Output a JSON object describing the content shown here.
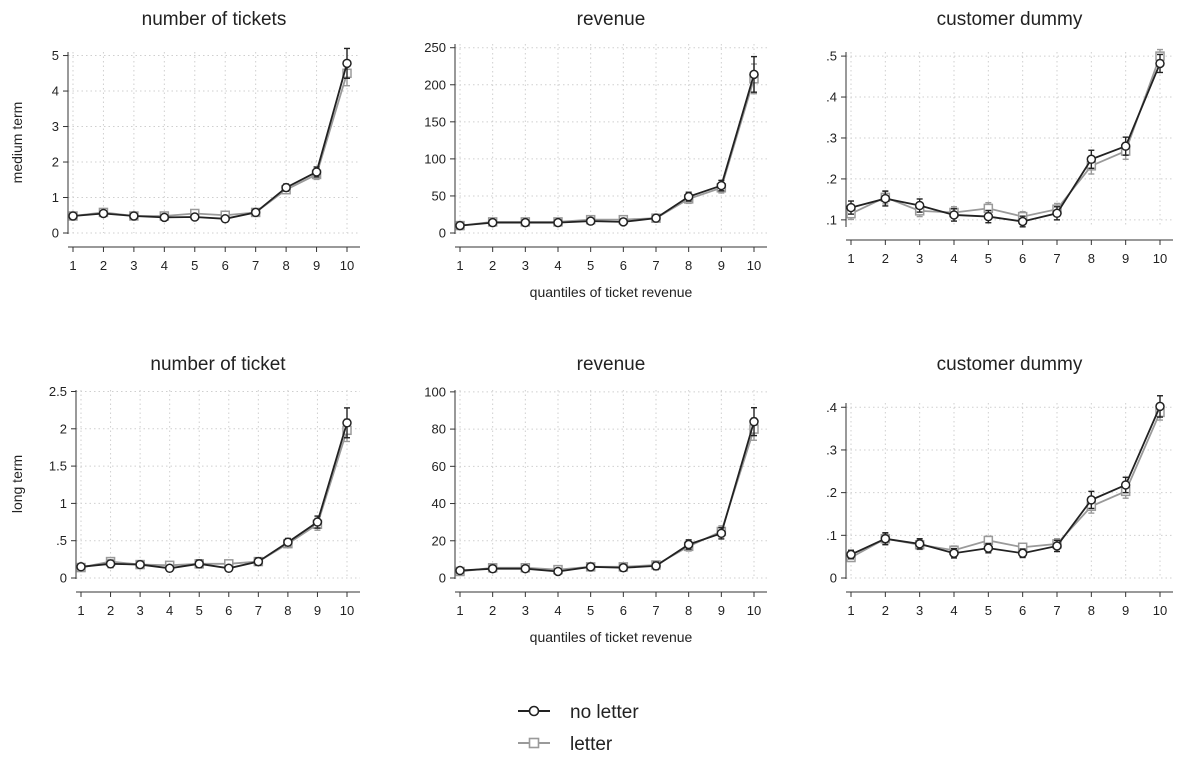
{
  "chart_data": [
    {
      "type": "line",
      "title": "number of tickets",
      "ylabel": "medium term",
      "xlabel": "",
      "x": [
        1,
        2,
        3,
        4,
        5,
        6,
        7,
        8,
        9,
        10
      ],
      "ylim": [
        0,
        5.1
      ],
      "yticks": [
        0,
        1,
        2,
        3,
        4,
        5
      ],
      "yticklabels": [
        "0",
        "1",
        "2",
        "3",
        "4",
        "5"
      ],
      "grid": true,
      "series": [
        {
          "name": "no letter",
          "values": [
            0.48,
            0.55,
            0.48,
            0.44,
            0.45,
            0.4,
            0.58,
            1.28,
            1.72,
            4.78
          ],
          "errors": [
            0.05,
            0.07,
            0.06,
            0.06,
            0.07,
            0.06,
            0.08,
            0.1,
            0.14,
            0.42
          ]
        },
        {
          "name": "letter",
          "values": [
            0.48,
            0.58,
            0.48,
            0.48,
            0.55,
            0.5,
            0.58,
            1.22,
            1.65,
            4.5
          ],
          "errors": [
            0.05,
            0.07,
            0.06,
            0.06,
            0.07,
            0.06,
            0.08,
            0.1,
            0.14,
            0.35
          ]
        }
      ]
    },
    {
      "type": "line",
      "title": "revenue",
      "ylabel": "",
      "xlabel": "quantiles of ticket revenue",
      "x": [
        1,
        2,
        3,
        4,
        5,
        6,
        7,
        8,
        9,
        10
      ],
      "ylim": [
        0,
        255
      ],
      "yticks": [
        0,
        50,
        100,
        150,
        200,
        250
      ],
      "yticklabels": [
        "0",
        "50",
        "100",
        "150",
        "200",
        "250"
      ],
      "grid": true,
      "series": [
        {
          "name": "no letter",
          "values": [
            10,
            14,
            14,
            14,
            16,
            15,
            20,
            49,
            64,
            214
          ],
          "errors": [
            2,
            3,
            3,
            3,
            4,
            4,
            4,
            6,
            7,
            24
          ]
        },
        {
          "name": "letter",
          "values": [
            10,
            15,
            15,
            15,
            18,
            18,
            20,
            46,
            61,
            208
          ],
          "errors": [
            2,
            3,
            3,
            3,
            4,
            4,
            4,
            6,
            7,
            20
          ]
        }
      ]
    },
    {
      "type": "line",
      "title": "customer dummy",
      "ylabel": "",
      "xlabel": "",
      "x": [
        1,
        2,
        3,
        4,
        5,
        6,
        7,
        8,
        9,
        10
      ],
      "ylim": [
        0.085,
        0.51
      ],
      "yticks": [
        0.1,
        0.2,
        0.3,
        0.4,
        0.5
      ],
      "yticklabels": [
        ".1",
        ".2",
        ".3",
        ".4",
        ".5"
      ],
      "grid": true,
      "series": [
        {
          "name": "no letter",
          "values": [
            0.13,
            0.152,
            0.135,
            0.112,
            0.108,
            0.096,
            0.116,
            0.248,
            0.28,
            0.482
          ],
          "errors": [
            0.016,
            0.018,
            0.016,
            0.015,
            0.015,
            0.013,
            0.016,
            0.022,
            0.022,
            0.022
          ]
        },
        {
          "name": "letter",
          "values": [
            0.115,
            0.155,
            0.122,
            0.118,
            0.128,
            0.108,
            0.126,
            0.232,
            0.268,
            0.5
          ],
          "errors": [
            0.014,
            0.016,
            0.014,
            0.014,
            0.014,
            0.012,
            0.014,
            0.02,
            0.02,
            0.016
          ]
        }
      ]
    },
    {
      "type": "line",
      "title": "number of ticket",
      "ylabel": "long term",
      "xlabel": "",
      "x": [
        1,
        2,
        3,
        4,
        5,
        6,
        7,
        8,
        9,
        10
      ],
      "ylim": [
        0,
        2.52
      ],
      "yticks": [
        0,
        0.5,
        1,
        1.5,
        2,
        2.5
      ],
      "yticklabels": [
        "0",
        ".5",
        "1",
        "1.5",
        "2",
        "2.5"
      ],
      "grid": true,
      "series": [
        {
          "name": "no letter",
          "values": [
            0.15,
            0.19,
            0.18,
            0.13,
            0.19,
            0.13,
            0.22,
            0.48,
            0.75,
            2.08
          ],
          "errors": [
            0.04,
            0.05,
            0.04,
            0.04,
            0.05,
            0.04,
            0.05,
            0.05,
            0.08,
            0.2
          ]
        },
        {
          "name": "letter",
          "values": [
            0.14,
            0.22,
            0.18,
            0.17,
            0.19,
            0.19,
            0.22,
            0.46,
            0.72,
            1.98
          ],
          "errors": [
            0.04,
            0.05,
            0.04,
            0.04,
            0.05,
            0.04,
            0.05,
            0.05,
            0.08,
            0.15
          ]
        }
      ]
    },
    {
      "type": "line",
      "title": "revenue",
      "ylabel": "",
      "xlabel": "quantiles of ticket revenue",
      "x": [
        1,
        2,
        3,
        4,
        5,
        6,
        7,
        8,
        9,
        10
      ],
      "ylim": [
        0,
        101
      ],
      "yticks": [
        0,
        20,
        40,
        60,
        80,
        100
      ],
      "yticklabels": [
        "0",
        "20",
        "40",
        "60",
        "80",
        "100"
      ],
      "grid": true,
      "series": [
        {
          "name": "no letter",
          "values": [
            4,
            5,
            5,
            3.5,
            6,
            5.5,
            6.5,
            18,
            24,
            84
          ],
          "errors": [
            1.5,
            1.8,
            1.6,
            1.4,
            1.6,
            1.8,
            2.0,
            2.5,
            3.0,
            7.5
          ]
        },
        {
          "name": "letter",
          "values": [
            3.5,
            5.5,
            5.5,
            4.5,
            6,
            6,
            7,
            17,
            25,
            80
          ],
          "errors": [
            1.5,
            1.8,
            1.6,
            1.4,
            1.6,
            1.8,
            2.0,
            2.5,
            3.0,
            6.0
          ]
        }
      ]
    },
    {
      "type": "line",
      "title": "customer dummy",
      "ylabel": "",
      "xlabel": "",
      "x": [
        1,
        2,
        3,
        4,
        5,
        6,
        7,
        8,
        9,
        10
      ],
      "ylim": [
        0,
        0.41
      ],
      "yticks": [
        0,
        0.1,
        0.2,
        0.3,
        0.4
      ],
      "yticklabels": [
        "0",
        ".1",
        ".2",
        ".3",
        ".4"
      ],
      "grid": true,
      "series": [
        {
          "name": "no letter",
          "values": [
            0.055,
            0.092,
            0.08,
            0.058,
            0.07,
            0.058,
            0.075,
            0.183,
            0.218,
            0.402
          ],
          "errors": [
            0.01,
            0.014,
            0.012,
            0.011,
            0.011,
            0.01,
            0.013,
            0.02,
            0.018,
            0.025
          ]
        },
        {
          "name": "letter",
          "values": [
            0.048,
            0.092,
            0.078,
            0.065,
            0.088,
            0.072,
            0.08,
            0.168,
            0.203,
            0.388
          ],
          "errors": [
            0.009,
            0.012,
            0.011,
            0.01,
            0.01,
            0.009,
            0.012,
            0.016,
            0.016,
            0.018
          ]
        }
      ]
    }
  ],
  "legend": {
    "placement": "bottom-center",
    "items": [
      {
        "label": "no letter",
        "color": "#222222",
        "marker": "circle"
      },
      {
        "label": "letter",
        "color": "#9a9a9a",
        "marker": "square"
      }
    ]
  },
  "colors": {
    "no_letter": "#222222",
    "letter": "#9a9a9a",
    "grid": "#cfcfcf",
    "axis": "#333333"
  }
}
